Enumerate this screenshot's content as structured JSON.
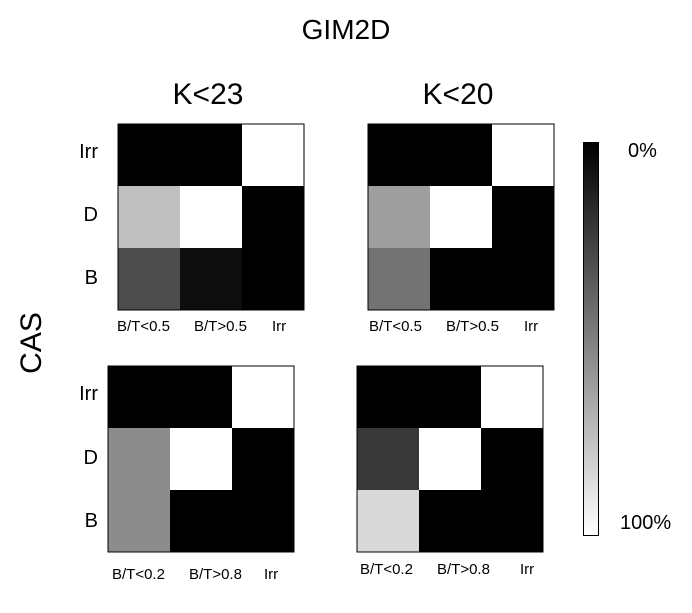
{
  "title": "GIM2D",
  "ylabel": "CAS",
  "columns": [
    "K<23",
    "K<20"
  ],
  "colorbar": {
    "top_label": "0%",
    "bottom_label": "100%",
    "colors": [
      "#000000",
      "#ffffff"
    ]
  },
  "chart_data": [
    {
      "type": "heatmap",
      "column_title": "K<23",
      "rows": [
        "Irr",
        "D",
        "B"
      ],
      "cols": [
        "B/T<0.5",
        "B/T>0.5",
        "Irr"
      ],
      "values": [
        [
          0,
          0,
          100
        ],
        [
          75,
          100,
          0
        ],
        [
          30,
          5,
          0
        ]
      ],
      "scale_min": 0,
      "scale_max": 100
    },
    {
      "type": "heatmap",
      "column_title": "K<20",
      "rows": [
        "Irr",
        "D",
        "B"
      ],
      "cols": [
        "B/T<0.5",
        "B/T>0.5",
        "Irr"
      ],
      "values": [
        [
          0,
          0,
          100
        ],
        [
          62,
          100,
          0
        ],
        [
          45,
          0,
          0
        ]
      ],
      "scale_min": 0,
      "scale_max": 100
    },
    {
      "type": "heatmap",
      "column_title": "K<23",
      "rows": [
        "Irr",
        "D",
        "B"
      ],
      "cols": [
        "B/T<0.2",
        "B/T>0.8",
        "Irr"
      ],
      "values": [
        [
          0,
          0,
          100
        ],
        [
          55,
          100,
          0
        ],
        [
          55,
          0,
          0
        ]
      ],
      "scale_min": 0,
      "scale_max": 100
    },
    {
      "type": "heatmap",
      "column_title": "K<20",
      "rows": [
        "Irr",
        "D",
        "B"
      ],
      "cols": [
        "B/T<0.2",
        "B/T>0.8",
        "Irr"
      ],
      "values": [
        [
          0,
          0,
          100
        ],
        [
          22,
          100,
          0
        ],
        [
          85,
          0,
          0
        ]
      ],
      "scale_min": 0,
      "scale_max": 100
    }
  ]
}
